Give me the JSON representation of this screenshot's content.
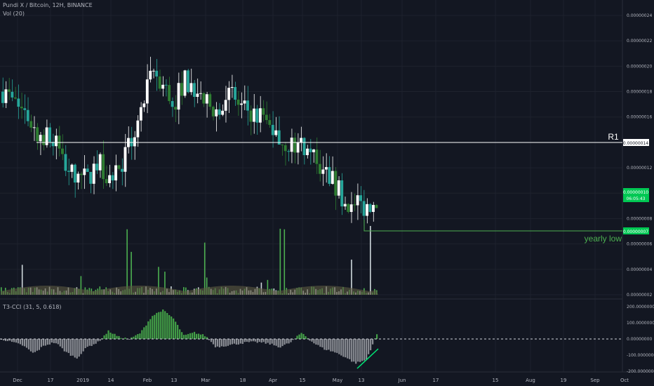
{
  "header": {
    "title": "Pundi X / Bitcoin, 12H, BINANCE",
    "volume_indicator": "Vol (20)",
    "cci_indicator": "T3-CCI (31, 5, 0.618)"
  },
  "colors": {
    "background": "#131722",
    "grid": "#1e222d",
    "candle_up": "#ffffff",
    "candle_down": "#26a69a",
    "candle_green": "#2e7d32",
    "volume_green": "#4caf50",
    "volume_ma": "#5d5a41",
    "cci_bar": "#8a8d94",
    "cci_green": "#43a047",
    "level_line": "#ffffff",
    "low_line": "#4caf50",
    "price_badge": "#00c853",
    "trend_line": "#00e676"
  },
  "chart_data": {
    "type": "candlestick",
    "x_axis_labels": [
      "Dec",
      "17",
      "2019",
      "14",
      "Feb",
      "13",
      "Mar",
      "18",
      "Apr",
      "15",
      "May",
      "13",
      "Jun",
      "17",
      "15",
      "Aug",
      "19",
      "Sep",
      "Oct"
    ],
    "price_axis_labels": [
      "0.00000024",
      "0.00000022",
      "0.00000020",
      "0.00000018",
      "0.00000016",
      "0.00000014",
      "0.00000012",
      "0.00000010",
      "0.00000008",
      "0.00000007",
      "0.00000006",
      "0.00000004",
      "0.00000002"
    ],
    "price_range": [
      2e-08,
      2.4e-07
    ],
    "approx_close_path": [
      1.8e-07,
      1.72e-07,
      1.65e-07,
      1.5e-07,
      1.45e-07,
      1.38e-07,
      1.2e-07,
      1.13e-07,
      1.12e-07,
      1.25e-07,
      1.13e-07,
      1.2e-07,
      1.4e-07,
      1.65e-07,
      1.95e-07,
      1.85e-07,
      1.7e-07,
      1.9e-07,
      1.82e-07,
      1.7e-07,
      1.65e-07,
      1.8e-07,
      1.7e-07,
      1.65e-07,
      1.6e-07,
      1.55e-07,
      1.4e-07,
      1.38e-07,
      1.4e-07,
      1.28e-07,
      1.2e-07,
      1.08e-07,
      9.5e-08,
      9e-08,
      9e-08,
      9.5e-08
    ],
    "annotations": {
      "r1_label": "R1",
      "r1_value": "0.00000014",
      "current_price": "0.00000010",
      "countdown": "06:05:43",
      "yearly_low_value": "0.00000007",
      "yearly_low_label": "yearly low"
    },
    "cci_axis_labels": [
      "200.00000000",
      "100.00000000",
      "0.00000000",
      "-100.00000000",
      "-200.00000000"
    ],
    "cci_range": [
      -200,
      200
    ],
    "approx_cci_path": [
      0,
      -20,
      -40,
      -90,
      -40,
      -20,
      -80,
      -120,
      -50,
      -20,
      50,
      10,
      0,
      40,
      140,
      180,
      130,
      20,
      40,
      20,
      -50,
      -40,
      -30,
      -20,
      -20,
      -30,
      -50,
      -20,
      40,
      -20,
      -60,
      -80,
      -110,
      -150,
      -130,
      30
    ]
  }
}
